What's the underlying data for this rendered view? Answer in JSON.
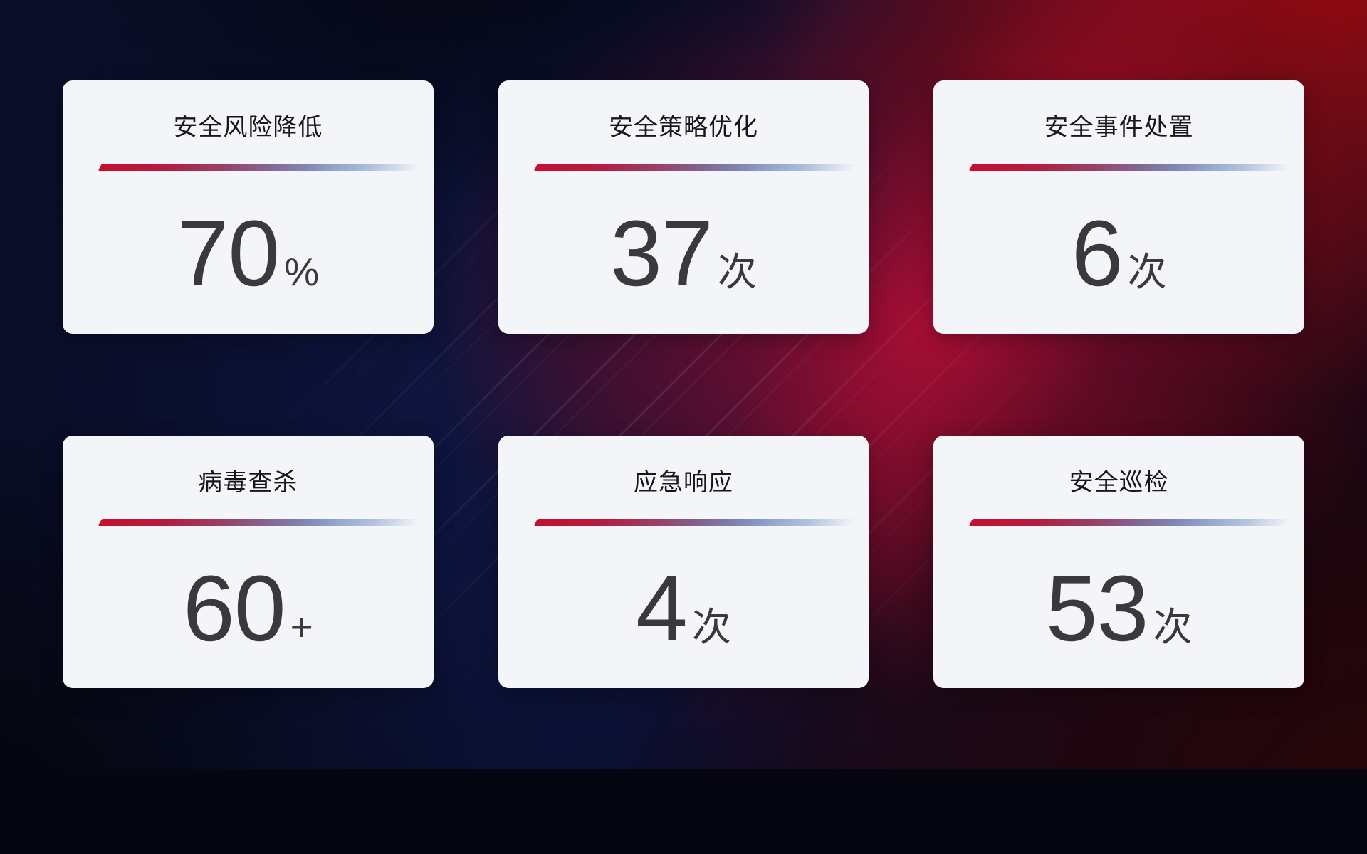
{
  "cards": [
    {
      "title": "安全风险降低",
      "value": "70",
      "unit": "%"
    },
    {
      "title": "安全策略优化",
      "value": "37",
      "unit": "次"
    },
    {
      "title": "安全事件处置",
      "value": "6",
      "unit": "次"
    },
    {
      "title": "病毒查杀",
      "value": "60",
      "unit": "+"
    },
    {
      "title": "应急响应",
      "value": "4",
      "unit": "次"
    },
    {
      "title": "安全巡检",
      "value": "53",
      "unit": "次"
    }
  ],
  "colors": {
    "card_background": "#f4f5f8",
    "title_text": "#17171b",
    "value_text": "#3a3a3e",
    "divider_gradient_start_red": "#c50f30",
    "divider_gradient_end_blue": "#b3c3de",
    "background_navy": "#0b1136",
    "background_red": "#a40a0e",
    "background_crimson": "#ac0c30"
  }
}
